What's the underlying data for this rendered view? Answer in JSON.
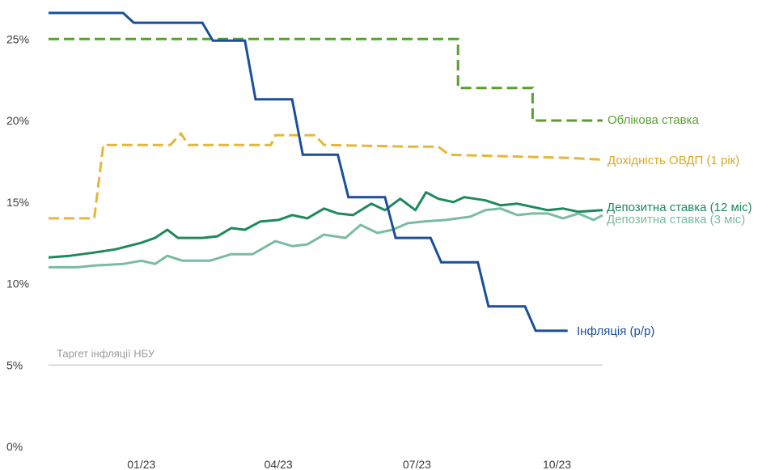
{
  "chart_data": {
    "type": "line",
    "title": "",
    "xlabel": "",
    "ylabel": "",
    "x_range": [
      "2022-11-01",
      "2023-10-31"
    ],
    "ylim": [
      0,
      27
    ],
    "y_ticks": [
      0,
      5,
      10,
      15,
      20,
      25
    ],
    "y_tick_labels": [
      "0%",
      "5%",
      "10%",
      "15%",
      "20%",
      "25%"
    ],
    "x_ticks": [
      "2023-01-01",
      "2023-04-01",
      "2023-07-01",
      "2023-10-01"
    ],
    "x_tick_labels": [
      "01/23",
      "04/23",
      "07/23",
      "10/23"
    ],
    "grid": false,
    "legend": "inline labels at line ends",
    "annotations": [
      {
        "text": "Таргет інфляції НБУ",
        "y": 5
      }
    ],
    "series": [
      {
        "name": "Облікова ставка",
        "color": "#5a9e2f",
        "style": "dashed",
        "step": true,
        "points": [
          [
            "2022-11-01",
            25
          ],
          [
            "2023-07-28",
            25
          ],
          [
            "2023-07-28",
            22
          ],
          [
            "2023-09-15",
            22
          ],
          [
            "2023-09-15",
            20
          ],
          [
            "2023-10-31",
            20
          ]
        ]
      },
      {
        "name": "Дохідність ОВДП (1 рік)",
        "color": "#e6b63a",
        "style": "dashed",
        "step": true,
        "points": [
          [
            "2022-11-01",
            14
          ],
          [
            "2022-12-01",
            14
          ],
          [
            "2022-12-07",
            18.5
          ],
          [
            "2023-01-20",
            18.5
          ],
          [
            "2023-01-27",
            19.2
          ],
          [
            "2023-02-01",
            18.5
          ],
          [
            "2023-03-27",
            18.5
          ],
          [
            "2023-03-30",
            19.1
          ],
          [
            "2023-04-25",
            19.1
          ],
          [
            "2023-05-01",
            18.5
          ],
          [
            "2023-06-25",
            18.4
          ],
          [
            "2023-07-15",
            18.4
          ],
          [
            "2023-07-22",
            17.9
          ],
          [
            "2023-10-10",
            17.7
          ],
          [
            "2023-10-31",
            17.6
          ]
        ]
      },
      {
        "name": "Депозитна ставка (12 міс)",
        "color": "#1e8a5c",
        "style": "solid",
        "step": false,
        "points": [
          [
            "2022-11-01",
            11.6
          ],
          [
            "2022-11-15",
            11.7
          ],
          [
            "2022-12-01",
            11.9
          ],
          [
            "2022-12-15",
            12.1
          ],
          [
            "2023-01-01",
            12.5
          ],
          [
            "2023-01-10",
            12.8
          ],
          [
            "2023-01-18",
            13.3
          ],
          [
            "2023-01-25",
            12.8
          ],
          [
            "2023-02-10",
            12.8
          ],
          [
            "2023-02-20",
            12.9
          ],
          [
            "2023-03-01",
            13.4
          ],
          [
            "2023-03-10",
            13.3
          ],
          [
            "2023-03-20",
            13.8
          ],
          [
            "2023-04-01",
            13.9
          ],
          [
            "2023-04-10",
            14.2
          ],
          [
            "2023-04-20",
            14.0
          ],
          [
            "2023-05-01",
            14.6
          ],
          [
            "2023-05-10",
            14.3
          ],
          [
            "2023-05-20",
            14.2
          ],
          [
            "2023-06-01",
            14.9
          ],
          [
            "2023-06-10",
            14.5
          ],
          [
            "2023-06-20",
            15.2
          ],
          [
            "2023-06-30",
            14.5
          ],
          [
            "2023-07-07",
            15.6
          ],
          [
            "2023-07-15",
            15.2
          ],
          [
            "2023-07-25",
            15.0
          ],
          [
            "2023-08-01",
            15.3
          ],
          [
            "2023-08-15",
            15.1
          ],
          [
            "2023-08-25",
            14.8
          ],
          [
            "2023-09-05",
            14.9
          ],
          [
            "2023-09-15",
            14.7
          ],
          [
            "2023-09-25",
            14.5
          ],
          [
            "2023-10-05",
            14.6
          ],
          [
            "2023-10-15",
            14.4
          ],
          [
            "2023-10-31",
            14.5
          ]
        ]
      },
      {
        "name": "Депозитна ставка (3 міс)",
        "color": "#79bca0",
        "style": "solid",
        "step": false,
        "points": [
          [
            "2022-11-01",
            11.0
          ],
          [
            "2022-11-20",
            11.0
          ],
          [
            "2022-12-01",
            11.1
          ],
          [
            "2022-12-20",
            11.2
          ],
          [
            "2023-01-01",
            11.4
          ],
          [
            "2023-01-10",
            11.2
          ],
          [
            "2023-01-18",
            11.7
          ],
          [
            "2023-01-28",
            11.4
          ],
          [
            "2023-02-15",
            11.4
          ],
          [
            "2023-03-01",
            11.8
          ],
          [
            "2023-03-15",
            11.8
          ],
          [
            "2023-03-30",
            12.6
          ],
          [
            "2023-04-10",
            12.3
          ],
          [
            "2023-04-20",
            12.4
          ],
          [
            "2023-05-01",
            13.0
          ],
          [
            "2023-05-15",
            12.8
          ],
          [
            "2023-05-25",
            13.6
          ],
          [
            "2023-06-05",
            13.1
          ],
          [
            "2023-06-15",
            13.3
          ],
          [
            "2023-06-25",
            13.7
          ],
          [
            "2023-07-05",
            13.8
          ],
          [
            "2023-07-20",
            13.9
          ],
          [
            "2023-08-05",
            14.1
          ],
          [
            "2023-08-15",
            14.5
          ],
          [
            "2023-08-25",
            14.6
          ],
          [
            "2023-09-05",
            14.2
          ],
          [
            "2023-09-15",
            14.3
          ],
          [
            "2023-09-25",
            14.3
          ],
          [
            "2023-10-05",
            14.0
          ],
          [
            "2023-10-15",
            14.3
          ],
          [
            "2023-10-25",
            13.9
          ],
          [
            "2023-10-31",
            14.2
          ]
        ]
      },
      {
        "name": "Інфляція (р/р)",
        "color": "#1a4f9c",
        "style": "solid",
        "step": true,
        "points": [
          [
            "2022-11-01",
            26.6
          ],
          [
            "2022-12-20",
            26.6
          ],
          [
            "2022-12-27",
            26.0
          ],
          [
            "2023-02-10",
            26.0
          ],
          [
            "2023-02-17",
            24.9
          ],
          [
            "2023-03-10",
            24.9
          ],
          [
            "2023-03-17",
            21.3
          ],
          [
            "2023-04-10",
            21.3
          ],
          [
            "2023-04-17",
            17.9
          ],
          [
            "2023-05-10",
            17.9
          ],
          [
            "2023-05-17",
            15.3
          ],
          [
            "2023-06-10",
            15.3
          ],
          [
            "2023-06-17",
            12.8
          ],
          [
            "2023-07-10",
            12.8
          ],
          [
            "2023-07-17",
            11.3
          ],
          [
            "2023-08-10",
            11.3
          ],
          [
            "2023-08-17",
            8.6
          ],
          [
            "2023-09-10",
            8.6
          ],
          [
            "2023-09-17",
            7.1
          ],
          [
            "2023-10-08",
            7.1
          ]
        ]
      }
    ],
    "line_labels": [
      {
        "text": "Облікова ставка",
        "color": "#5a9e2f"
      },
      {
        "text": "Дохідність ОВДП (1 рік)",
        "color": "#d9a82a"
      },
      {
        "text": "Депозитна ставка (12 міс)",
        "color": "#1e8a5c"
      },
      {
        "text": "Депозитна ставка (3 міс)",
        "color": "#79bca0"
      },
      {
        "text": "Інфляція (р/р)",
        "color": "#1a4f9c"
      }
    ],
    "colors": {
      "target_line": "#c8c8c8",
      "tick_text": "#3c3c3c"
    }
  }
}
